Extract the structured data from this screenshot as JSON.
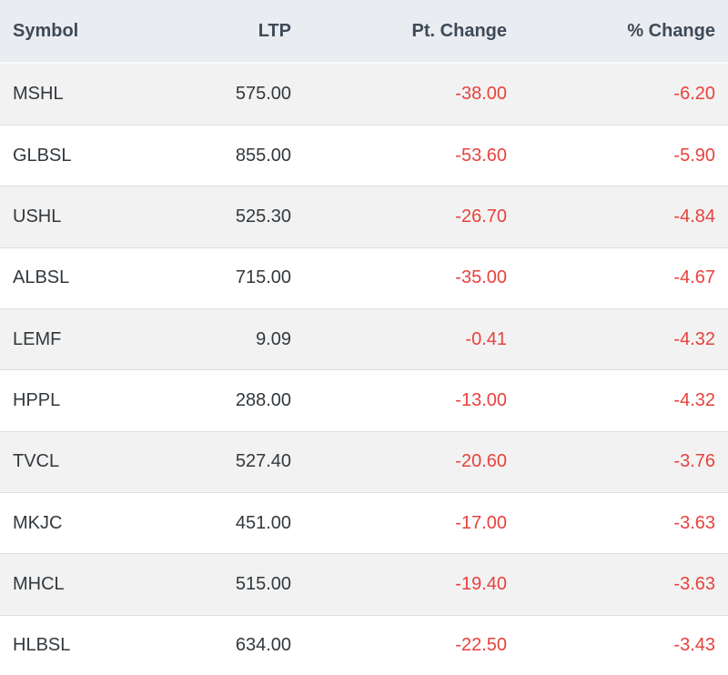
{
  "table": {
    "columns": [
      {
        "key": "symbol",
        "label": "Symbol"
      },
      {
        "key": "ltp",
        "label": "LTP"
      },
      {
        "key": "pt_change",
        "label": "Pt. Change"
      },
      {
        "key": "pct_change",
        "label": "% Change"
      }
    ],
    "rows": [
      {
        "symbol": "MSHL",
        "ltp": "575.00",
        "pt_change": "-38.00",
        "pct_change": "-6.20"
      },
      {
        "symbol": "GLBSL",
        "ltp": "855.00",
        "pt_change": "-53.60",
        "pct_change": "-5.90"
      },
      {
        "symbol": "USHL",
        "ltp": "525.30",
        "pt_change": "-26.70",
        "pct_change": "-4.84"
      },
      {
        "symbol": "ALBSL",
        "ltp": "715.00",
        "pt_change": "-35.00",
        "pct_change": "-4.67"
      },
      {
        "symbol": "LEMF",
        "ltp": "9.09",
        "pt_change": "-0.41",
        "pct_change": "-4.32"
      },
      {
        "symbol": "HPPL",
        "ltp": "288.00",
        "pt_change": "-13.00",
        "pct_change": "-4.32"
      },
      {
        "symbol": "TVCL",
        "ltp": "527.40",
        "pt_change": "-20.60",
        "pct_change": "-3.76"
      },
      {
        "symbol": "MKJC",
        "ltp": "451.00",
        "pt_change": "-17.00",
        "pct_change": "-3.63"
      },
      {
        "symbol": "MHCL",
        "ltp": "515.00",
        "pt_change": "-19.40",
        "pct_change": "-3.63"
      },
      {
        "symbol": "HLBSL",
        "ltp": "634.00",
        "pt_change": "-22.50",
        "pct_change": "-3.43"
      }
    ]
  },
  "colors": {
    "header_bg": "#e9edf1",
    "header_text": "#3e4a57",
    "row_bg": "#ffffff",
    "row_alt_bg": "#f2f2f2",
    "row_border": "#dedede",
    "cell_text": "#32383d",
    "negative": "#e8423d"
  }
}
